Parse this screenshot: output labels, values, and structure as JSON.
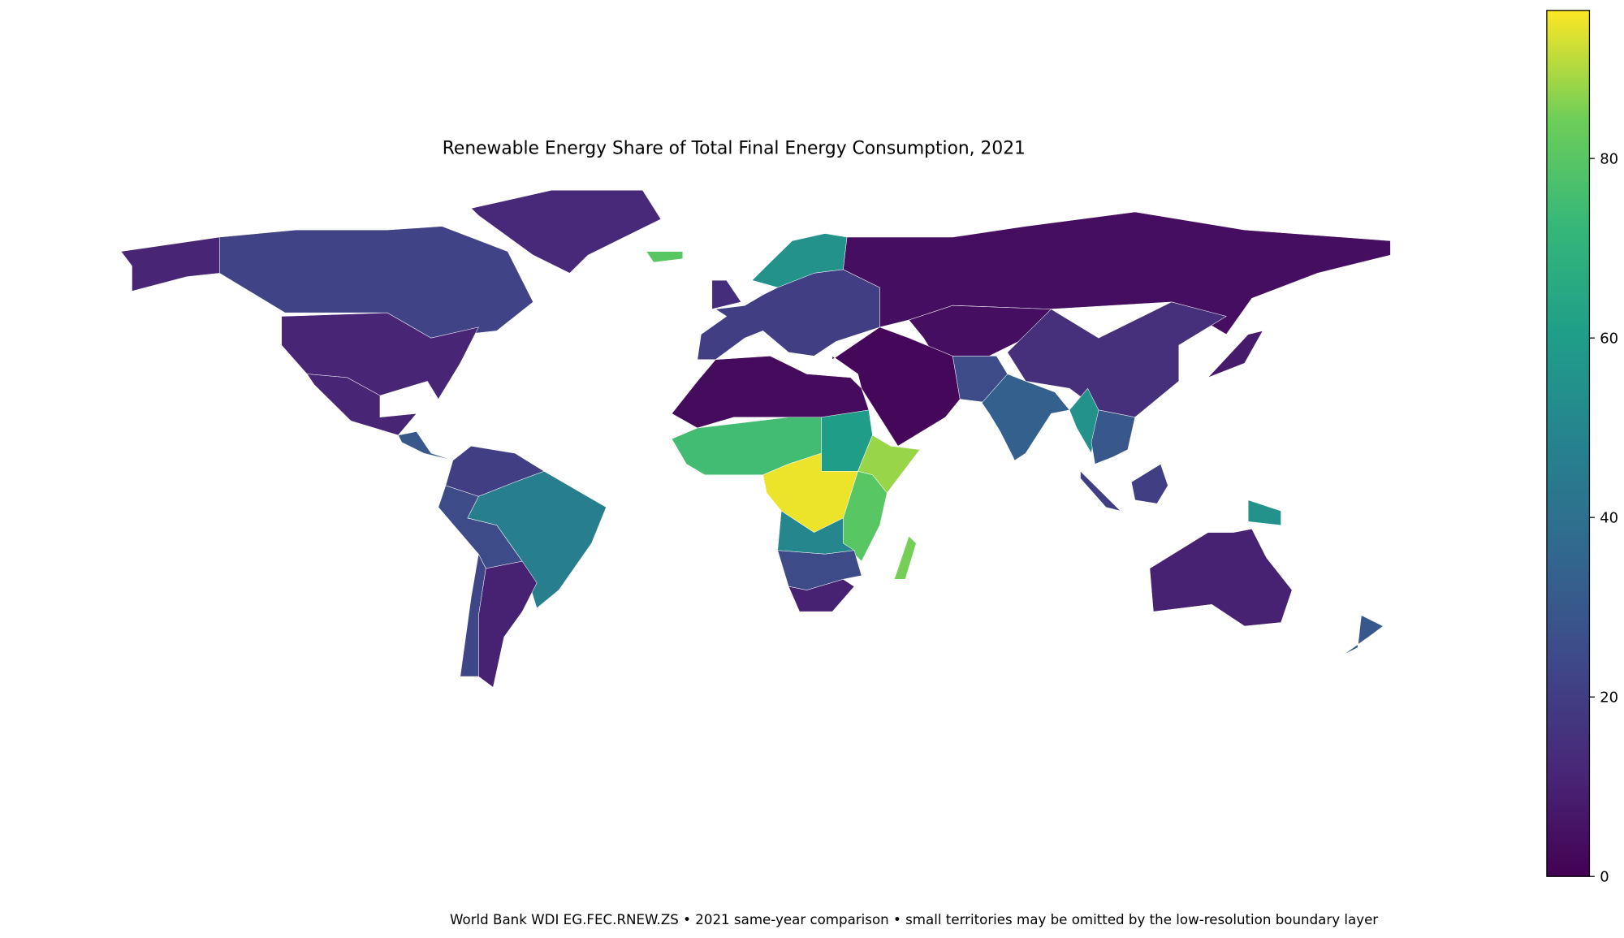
{
  "chart_data": {
    "type": "choropleth",
    "title": "Renewable Energy Share of Total Final Energy Consumption, 2021",
    "note": "World Bank WDI EG.FEC.RNEW.ZS • 2021 same-year comparison • small territories may be omitted by the low-resolution boundary layer",
    "values": [
      11,
      22,
      12,
      11,
      11,
      30,
      20,
      47,
      25,
      10,
      23,
      80,
      55,
      20,
      14,
      4,
      4,
      2,
      25,
      33,
      15,
      55,
      30,
      8,
      20,
      20,
      55,
      10,
      30,
      3,
      75,
      60,
      88,
      95,
      80,
      50,
      25,
      10,
      85
    ],
    "colorbar": {
      "lim": [
        0,
        96.5
      ],
      "ticks": [
        0,
        20,
        40,
        60,
        80
      ]
    }
  }
}
